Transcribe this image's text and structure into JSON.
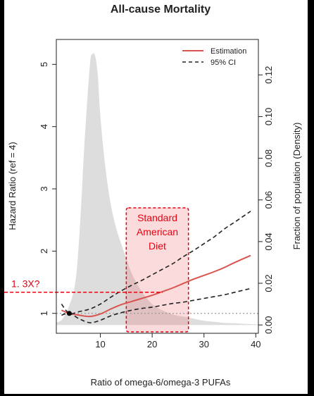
{
  "chart_data": {
    "type": "line",
    "title": "All-cause Mortality",
    "xlabel": "Ratio of omega-6/omega-3 PUFAs",
    "ylabel": "Hazard Ratio (ref = 4)",
    "y2label": "Fraction of population (Density)",
    "xlim": [
      1.5,
      40.5
    ],
    "ylim": [
      0.68,
      5.4
    ],
    "y2lim": [
      -0.004,
      0.137
    ],
    "xticks": [
      "10",
      "20",
      "30",
      "40"
    ],
    "yticks": [
      "1",
      "2",
      "3",
      "4",
      "5"
    ],
    "y2ticks": [
      "0.00",
      "0.02",
      "0.04",
      "0.06",
      "0.08",
      "0.10",
      "0.12"
    ],
    "reference_line": 1,
    "reference_point": {
      "x": 4,
      "y": 1
    },
    "legend": {
      "position": "top-right",
      "items": [
        "Estimation",
        "95% CI"
      ]
    },
    "series": [
      {
        "name": "Estimation",
        "color": "#d9534f",
        "style": "solid",
        "x": [
          2.5,
          4,
          6,
          8,
          10,
          12,
          14,
          16,
          18,
          20,
          22,
          24,
          26,
          28,
          30,
          32,
          34,
          36,
          39
        ],
        "y": [
          1.05,
          1.0,
          0.97,
          0.95,
          0.99,
          1.07,
          1.14,
          1.19,
          1.24,
          1.29,
          1.35,
          1.41,
          1.48,
          1.55,
          1.61,
          1.67,
          1.74,
          1.82,
          1.93
        ]
      },
      {
        "name": "95% CI",
        "color": "#222222",
        "style": "dashed",
        "x": [
          2.5,
          4,
          6,
          8,
          10,
          12,
          14,
          16,
          18,
          20,
          22,
          24,
          26,
          28,
          30,
          32,
          34,
          36,
          39
        ],
        "y": [
          1.15,
          1.0,
          1.03,
          1.07,
          1.15,
          1.26,
          1.36,
          1.45,
          1.53,
          1.62,
          1.71,
          1.8,
          1.91,
          2.01,
          2.12,
          2.23,
          2.36,
          2.47,
          2.64
        ]
      },
      {
        "color": "#222222",
        "style": "dashed",
        "x": [
          2.5,
          4,
          6,
          8,
          10,
          12,
          14,
          16,
          18,
          20,
          22,
          24,
          26,
          28,
          30,
          32,
          34,
          36,
          39
        ],
        "y": [
          0.97,
          1.0,
          0.91,
          0.85,
          0.89,
          0.96,
          1.01,
          1.05,
          1.08,
          1.1,
          1.13,
          1.16,
          1.18,
          1.21,
          1.24,
          1.27,
          1.3,
          1.34,
          1.4
        ]
      }
    ],
    "density": {
      "color": "#dddddd",
      "x": [
        1.5,
        3,
        5,
        6,
        7,
        8,
        8.5,
        9,
        9.5,
        10,
        11,
        12,
        13,
        14,
        15,
        16,
        18,
        20,
        22,
        24,
        26,
        28,
        30,
        32,
        34,
        36,
        38,
        40.5
      ],
      "y": [
        0.001,
        0.004,
        0.018,
        0.045,
        0.09,
        0.125,
        0.13,
        0.129,
        0.12,
        0.1,
        0.075,
        0.058,
        0.047,
        0.039,
        0.032,
        0.025,
        0.016,
        0.01,
        0.007,
        0.005,
        0.004,
        0.003,
        0.002,
        0.0015,
        0.001,
        0.0008,
        0.0005,
        0.0003
      ]
    },
    "annotations": [
      {
        "text": "Standard American Diet",
        "lines": [
          "Standard",
          "American",
          "Diet"
        ],
        "x_range": [
          15,
          27
        ],
        "color": "#e8000f"
      },
      {
        "text": "1. 3X?",
        "y": 1.34,
        "x_end": 22,
        "color": "#e8000f"
      }
    ]
  }
}
